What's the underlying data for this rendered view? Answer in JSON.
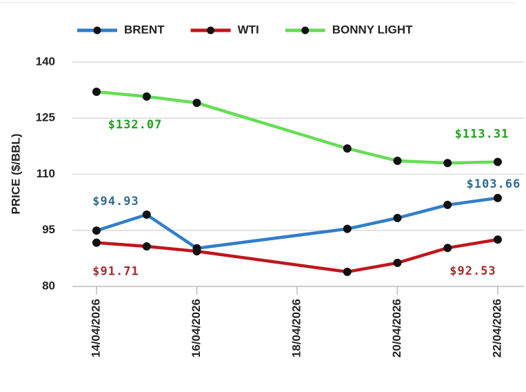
{
  "chart_data": {
    "type": "line",
    "y_label": "PRICE ($/BBL)",
    "x": [
      "14/04/2026",
      "15/04/2026",
      "16/04/2026",
      "19/04/2026",
      "20/04/2026",
      "21/04/2026",
      "22/04/2026"
    ],
    "xticks": [
      "14/04/2026",
      "16/04/2026",
      "18/04/2026",
      "20/04/2026",
      "22/04/2026"
    ],
    "ylim": [
      80,
      140
    ],
    "yticks": [
      80,
      95,
      110,
      125,
      140
    ],
    "grid": true,
    "legend": "top",
    "series": [
      {
        "name": "BRENT",
        "color": "#2f7fc9",
        "label_color": "#2e6b8f",
        "values": [
          94.93,
          99.2,
          90.2,
          95.4,
          98.3,
          101.8,
          103.66
        ],
        "value_labels": [
          "$94.93",
          null,
          null,
          null,
          null,
          null,
          "$103.66"
        ]
      },
      {
        "name": "WTI",
        "color": "#c0161b",
        "label_color": "#a52a2a",
        "values": [
          91.71,
          90.7,
          89.4,
          83.9,
          86.3,
          90.3,
          92.53
        ],
        "value_labels": [
          "$91.71",
          null,
          null,
          null,
          null,
          null,
          "$92.53"
        ]
      },
      {
        "name": "BONNY LIGHT",
        "color": "#66dd55",
        "label_color": "#1e9e1e",
        "values": [
          132.07,
          130.8,
          129.1,
          116.9,
          113.6,
          113.0,
          113.31
        ],
        "value_labels": [
          "$132.07",
          null,
          null,
          null,
          null,
          null,
          "$113.31"
        ]
      }
    ]
  }
}
